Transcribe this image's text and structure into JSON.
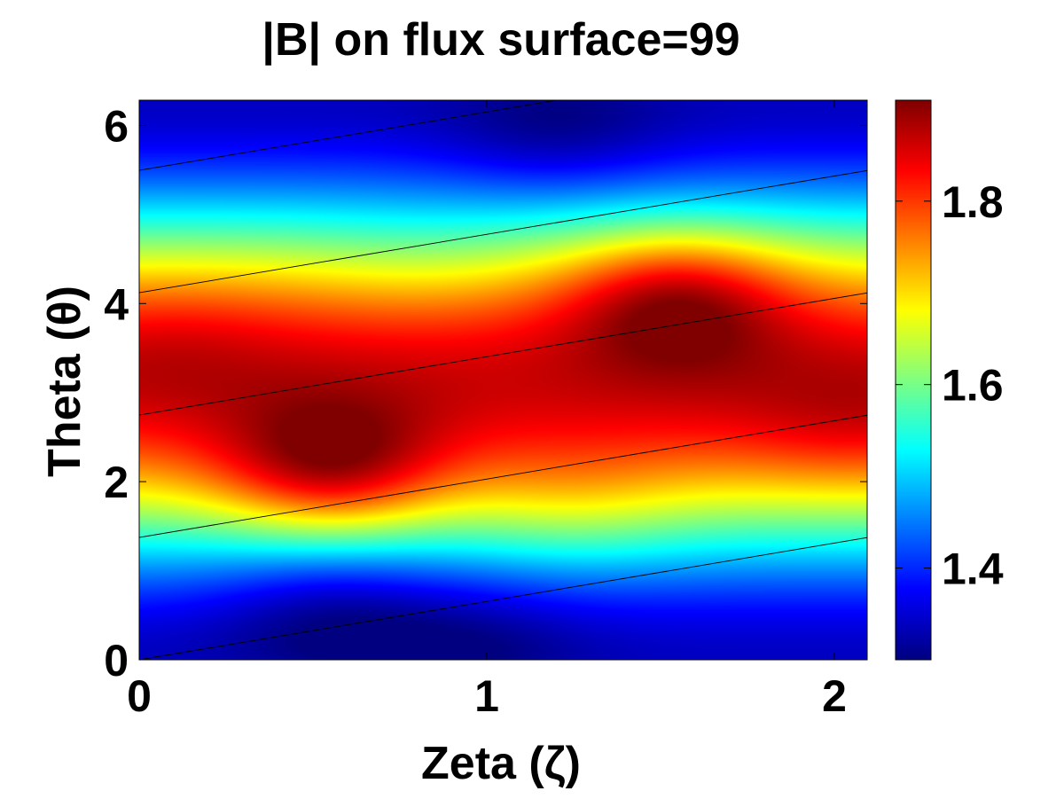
{
  "chart_data": {
    "type": "heatmap",
    "title": "|B| on flux surface=99",
    "xlabel": "Zeta (ζ)",
    "ylabel": "Theta (θ)",
    "xlim": [
      0,
      2.0944
    ],
    "ylim": [
      0,
      6.2832
    ],
    "x_ticks": [
      "0",
      "1",
      "2"
    ],
    "y_ticks": [
      "0",
      "2",
      "4",
      "6"
    ],
    "colormap": "jet",
    "color_range": [
      1.3,
      1.91
    ],
    "colorbar_ticks": [
      "1.4",
      "1.6",
      "1.8"
    ],
    "regions": [
      {
        "zeta": 0.55,
        "theta": 2.1,
        "B": 1.91
      },
      {
        "zeta": 1.55,
        "theta": 4.1,
        "B": 1.91
      },
      {
        "zeta": 1.2,
        "theta": 5.9,
        "B": 1.31
      },
      {
        "zeta": 0.55,
        "theta": 0.6,
        "B": 1.32
      },
      {
        "zeta": 0.95,
        "theta": 0.2,
        "B": 1.3
      },
      {
        "zeta": 0.8,
        "theta": 4.4,
        "B": 1.66
      },
      {
        "zeta": 1.25,
        "theta": 1.7,
        "B": 1.68
      },
      {
        "zeta": 0.1,
        "theta": 3.6,
        "B": 1.86
      },
      {
        "zeta": 2.05,
        "theta": 2.6,
        "B": 1.86
      }
    ],
    "field_lines": {
      "rotational_transform_slope": 0.655,
      "theta_offsets": [
        -1.374,
        0,
        1.374,
        2.748,
        4.122,
        5.496
      ]
    },
    "grid": false,
    "legend": "colorbar-right"
  }
}
